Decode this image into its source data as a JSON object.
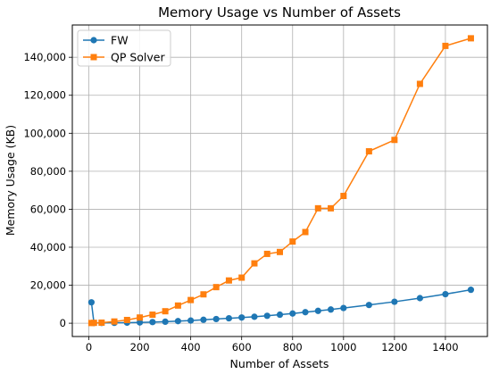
{
  "chart_data": {
    "type": "line",
    "title": "Memory Usage vs Number of Assets",
    "xlabel": "Number of Assets",
    "ylabel": "Memory Usage (KB)",
    "xlim": [
      -65,
      1565
    ],
    "ylim": [
      -7000,
      157000
    ],
    "xticks": [
      0,
      200,
      400,
      600,
      800,
      1000,
      1200,
      1400
    ],
    "xtick_labels": [
      "0",
      "200",
      "400",
      "600",
      "800",
      "1000",
      "1200",
      "1400"
    ],
    "yticks": [
      0,
      20000,
      40000,
      60000,
      80000,
      100000,
      120000,
      140000
    ],
    "ytick_labels": [
      "0",
      "20,000",
      "40,000",
      "60,000",
      "80,000",
      "100,000",
      "120,000",
      "140,000"
    ],
    "grid": true,
    "legend_position": "top-left",
    "series": [
      {
        "name": "FW",
        "color": "#1f77b4",
        "marker": "circle",
        "x": [
          10,
          20,
          50,
          100,
          150,
          200,
          250,
          300,
          350,
          400,
          450,
          500,
          550,
          600,
          650,
          700,
          750,
          800,
          850,
          900,
          950,
          1000,
          1100,
          1200,
          1300,
          1400,
          1500
        ],
        "y": [
          11000,
          100,
          150,
          200,
          300,
          400,
          600,
          800,
          1100,
          1400,
          1800,
          2200,
          2600,
          3000,
          3400,
          3900,
          4500,
          5100,
          5800,
          6500,
          7200,
          8000,
          9600,
          11300,
          13200,
          15300,
          17600
        ]
      },
      {
        "name": "QP Solver",
        "color": "#ff7f0e",
        "marker": "square",
        "x": [
          10,
          20,
          50,
          100,
          150,
          200,
          250,
          300,
          350,
          400,
          450,
          500,
          550,
          600,
          650,
          700,
          750,
          800,
          850,
          900,
          950,
          1000,
          1100,
          1200,
          1300,
          1400,
          1500
        ],
        "y": [
          100,
          200,
          300,
          900,
          1700,
          3000,
          4500,
          6300,
          9300,
          12200,
          15200,
          19000,
          22500,
          24000,
          31500,
          36500,
          37500,
          43000,
          48000,
          60500,
          60500,
          67000,
          90500,
          96500,
          126000,
          146000,
          150000
        ]
      }
    ]
  }
}
